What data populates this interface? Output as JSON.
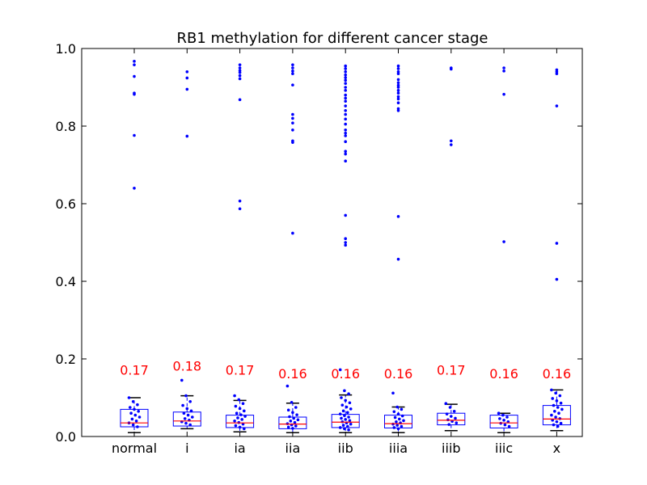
{
  "chart_data": {
    "type": "box",
    "title": "RB1 methylation for different cancer stage",
    "xlabel": "",
    "ylabel": "",
    "ylim": [
      0.0,
      1.0
    ],
    "yticks": [
      "0.0",
      "0.2",
      "0.4",
      "0.6",
      "0.8",
      "1.0"
    ],
    "grid": false,
    "colors": {
      "box": "#0000ff",
      "median": "#ff0000",
      "whisker": "#000000",
      "points": "#0000ff",
      "annotation": "#ff0000"
    },
    "categories": [
      "normal",
      "i",
      "ia",
      "iia",
      "iib",
      "iiia",
      "iiib",
      "iiic",
      "x"
    ],
    "boxes": [
      {
        "q1": 0.025,
        "median": 0.035,
        "q3": 0.07,
        "whisker_low": 0.01,
        "whisker_high": 0.1
      },
      {
        "q1": 0.027,
        "median": 0.04,
        "q3": 0.063,
        "whisker_low": 0.02,
        "whisker_high": 0.105
      },
      {
        "q1": 0.023,
        "median": 0.035,
        "q3": 0.055,
        "whisker_low": 0.012,
        "whisker_high": 0.093
      },
      {
        "q1": 0.02,
        "median": 0.032,
        "q3": 0.05,
        "whisker_low": 0.01,
        "whisker_high": 0.086
      },
      {
        "q1": 0.023,
        "median": 0.037,
        "q3": 0.057,
        "whisker_low": 0.01,
        "whisker_high": 0.107
      },
      {
        "q1": 0.022,
        "median": 0.033,
        "q3": 0.055,
        "whisker_low": 0.01,
        "whisker_high": 0.076
      },
      {
        "q1": 0.03,
        "median": 0.042,
        "q3": 0.06,
        "whisker_low": 0.015,
        "whisker_high": 0.083
      },
      {
        "q1": 0.022,
        "median": 0.035,
        "q3": 0.055,
        "whisker_low": 0.01,
        "whisker_high": 0.06
      },
      {
        "q1": 0.03,
        "median": 0.045,
        "q3": 0.08,
        "whisker_low": 0.015,
        "whisker_high": 0.12
      }
    ],
    "outliers": [
      [
        0.967,
        0.958,
        0.928,
        0.885,
        0.882,
        0.776,
        0.64
      ],
      [
        0.94,
        0.924,
        0.895,
        0.774
      ],
      [
        0.958,
        0.95,
        0.943,
        0.938,
        0.93,
        0.922,
        0.868,
        0.607,
        0.587
      ],
      [
        0.958,
        0.95,
        0.942,
        0.935,
        0.906,
        0.83,
        0.82,
        0.808,
        0.79,
        0.762,
        0.758,
        0.524
      ],
      [
        0.955,
        0.948,
        0.94,
        0.932,
        0.925,
        0.918,
        0.91,
        0.9,
        0.892,
        0.88,
        0.872,
        0.864,
        0.852,
        0.84,
        0.83,
        0.818,
        0.805,
        0.79,
        0.782,
        0.775,
        0.76,
        0.735,
        0.728,
        0.71,
        0.57,
        0.51,
        0.5,
        0.493
      ],
      [
        0.955,
        0.948,
        0.94,
        0.935,
        0.92,
        0.912,
        0.905,
        0.9,
        0.892,
        0.885,
        0.876,
        0.87,
        0.86,
        0.845,
        0.84,
        0.567,
        0.457
      ],
      [
        0.95,
        0.947,
        0.762,
        0.752
      ],
      [
        0.95,
        0.942,
        0.882,
        0.502
      ],
      [
        0.945,
        0.94,
        0.935,
        0.852,
        0.498,
        0.405
      ]
    ],
    "inbox_points": [
      [
        0.1,
        0.09,
        0.082,
        0.075,
        0.07,
        0.065,
        0.06,
        0.055,
        0.05,
        0.045,
        0.04,
        0.035,
        0.03,
        0.025
      ],
      [
        0.145,
        0.105,
        0.09,
        0.08,
        0.072,
        0.066,
        0.06,
        0.055,
        0.05,
        0.046,
        0.042,
        0.038,
        0.034,
        0.03
      ],
      [
        0.105,
        0.095,
        0.085,
        0.078,
        0.072,
        0.066,
        0.06,
        0.056,
        0.052,
        0.048,
        0.044,
        0.04,
        0.036,
        0.032,
        0.028,
        0.024,
        0.02
      ],
      [
        0.13,
        0.088,
        0.075,
        0.068,
        0.062,
        0.056,
        0.051,
        0.047,
        0.043,
        0.04,
        0.036,
        0.033,
        0.03,
        0.027,
        0.024,
        0.021
      ],
      [
        0.172,
        0.118,
        0.11,
        0.1,
        0.093,
        0.087,
        0.081,
        0.076,
        0.071,
        0.066,
        0.062,
        0.058,
        0.054,
        0.05,
        0.047,
        0.044,
        0.041,
        0.038,
        0.035,
        0.032,
        0.029,
        0.026,
        0.023,
        0.02,
        0.017
      ],
      [
        0.112,
        0.076,
        0.07,
        0.064,
        0.058,
        0.053,
        0.049,
        0.045,
        0.041,
        0.038,
        0.035,
        0.032,
        0.029,
        0.026,
        0.023,
        0.02
      ],
      [
        0.085,
        0.075,
        0.065,
        0.058,
        0.052,
        0.047,
        0.043,
        0.039,
        0.035,
        0.031
      ],
      [
        0.06,
        0.055,
        0.05,
        0.046,
        0.042,
        0.038,
        0.034,
        0.03,
        0.026
      ],
      [
        0.12,
        0.112,
        0.105,
        0.098,
        0.092,
        0.086,
        0.08,
        0.075,
        0.07,
        0.065,
        0.06,
        0.055,
        0.05,
        0.046,
        0.042,
        0.038,
        0.034,
        0.03,
        0.026
      ]
    ],
    "annotations": [
      "0.17",
      "0.18",
      "0.17",
      "0.16",
      "0.16",
      "0.16",
      "0.17",
      "0.16",
      "0.16"
    ],
    "annotation_y": [
      0.17,
      0.18,
      0.17,
      0.16,
      0.16,
      0.16,
      0.17,
      0.16,
      0.16
    ]
  }
}
